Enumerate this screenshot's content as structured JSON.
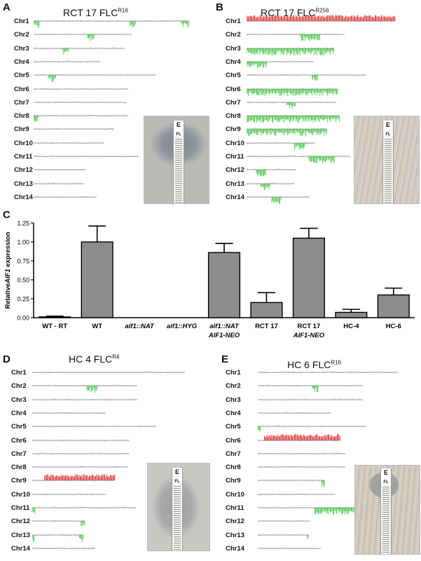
{
  "panels": {
    "A": {
      "letter": "A",
      "title_main": "RCT 17 FLC",
      "title_sup": "R16"
    },
    "B": {
      "letter": "B",
      "title_main": "RCT 17 FLC",
      "title_sup": "R256"
    },
    "C": {
      "letter": "C"
    },
    "D": {
      "letter": "D",
      "title_main": "HC 4 FLC",
      "title_sup": "R4"
    },
    "E": {
      "letter": "E",
      "title_main": "HC 6 FLC",
      "title_sup": "R16"
    }
  },
  "chromosomes": [
    "Chr1",
    "Chr2",
    "Chr3",
    "Chr4",
    "Chr5",
    "Chr6",
    "Chr7",
    "Chr8",
    "Chr9",
    "Chr10",
    "Chr11",
    "Chr12",
    "Chr13",
    "Chr14"
  ],
  "etest_strip": {
    "logo": "E",
    "label": "FL"
  },
  "colors": {
    "baseline": "#7a7a7a",
    "gain": "#e02020",
    "loss": "#35c235",
    "bar": "#8c8c8c"
  },
  "chart_data": {
    "type": "bar",
    "ylabel": "Relative AIF1 expression",
    "ylabel_italic_part": "AIF1",
    "ylabel_prefix": "Relative",
    "ylabel_suffix": "expression",
    "ylim": [
      0,
      1.25
    ],
    "yticks": [
      "0.00",
      "0.25",
      "0.50",
      "0.75",
      "1.00",
      "1.25"
    ],
    "categories": [
      {
        "line1": "WT - RT",
        "line2": "",
        "italic": false
      },
      {
        "line1": "WT",
        "line2": "",
        "italic": false
      },
      {
        "line1": "aif1::NAT",
        "line2": "",
        "italic": true
      },
      {
        "line1": "aif1::HYG",
        "line2": "",
        "italic": true
      },
      {
        "line1": "aif1::NAT",
        "line2": "AIF1-NEO",
        "italic": true
      },
      {
        "line1": "RCT 17",
        "line2": "",
        "italic": false
      },
      {
        "line1": "RCT 17",
        "line2": "AIF1-NEO",
        "italic": false
      },
      {
        "line1": "HC-4",
        "line2": "",
        "italic": false
      },
      {
        "line1": "HC-6",
        "line2": "",
        "italic": false
      }
    ],
    "values": [
      0.01,
      1.0,
      0.0,
      0.0,
      0.86,
      0.2,
      1.05,
      0.07,
      0.3
    ],
    "errors": [
      0.01,
      0.21,
      0.0,
      0.0,
      0.12,
      0.13,
      0.13,
      0.04,
      0.09
    ]
  }
}
